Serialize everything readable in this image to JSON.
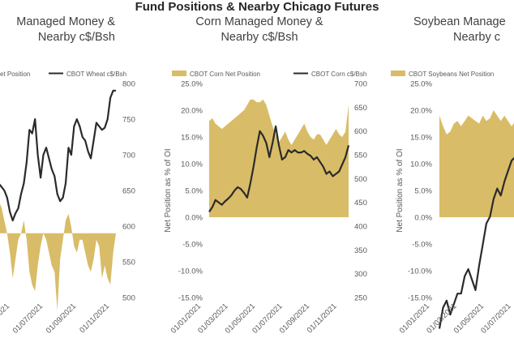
{
  "title": "Fund Positions & Nearby Chicago Futures",
  "colors": {
    "net_fill": "#D9BC67",
    "price_line": "#2B2B2B",
    "axis_text": "#595959"
  },
  "chart_data": [
    {
      "type": "area",
      "title_lines": [
        "Managed Money &",
        "Nearby c$/Bsh"
      ],
      "ylabel": "",
      "legend": [
        "et Position",
        "CBOT Wheat c$/Bsh"
      ],
      "legend_position": "top",
      "left_ticks": [],
      "right_ticks": [
        "800",
        "750",
        "700",
        "650",
        "600",
        "550",
        "500"
      ],
      "right_ylim": [
        500,
        800
      ],
      "x_tick_labels": [
        "01/05/2021",
        "01/07/2021",
        "01/09/2021",
        "01/11/2021"
      ],
      "net_position_pct": [
        6,
        5,
        4,
        2,
        0,
        -3,
        -7,
        -4,
        -1,
        0,
        2,
        -1,
        -6,
        -8,
        -9,
        -5,
        -2,
        0,
        -1,
        -3,
        -5,
        -6,
        -12,
        -4,
        -1,
        2,
        3,
        1,
        -2,
        -3,
        -1,
        -1,
        -3,
        -5,
        -6,
        -4,
        -1,
        -2,
        -7,
        -5,
        -7,
        -8,
        -3,
        0
      ],
      "price": [
        640,
        660,
        655,
        650,
        640,
        620,
        608,
        618,
        625,
        645,
        660,
        690,
        735,
        730,
        750,
        700,
        668,
        700,
        710,
        695,
        680,
        670,
        645,
        635,
        640,
        660,
        710,
        700,
        740,
        750,
        740,
        725,
        720,
        705,
        695,
        720,
        745,
        740,
        735,
        738,
        750,
        780,
        790,
        790
      ]
    },
    {
      "type": "area",
      "title_lines": [
        "Corn Managed Money &",
        "Nearby c$/Bsh"
      ],
      "ylabel": "Net Position as % of OI",
      "legend": [
        "CBOT Corn Net Position",
        "CBOT Corn c$/Bsh"
      ],
      "legend_position": "top",
      "left_ticks": [
        "25.0%",
        "20.0%",
        "15.0%",
        "10.0%",
        "5.0%",
        "0.0%",
        "-5.0%",
        "-10.0%",
        "-15.0%"
      ],
      "left_ylim": [
        -15,
        25
      ],
      "right_ticks": [
        "700",
        "650",
        "600",
        "550",
        "500",
        "450",
        "400",
        "350",
        "300",
        "250"
      ],
      "right_ylim": [
        250,
        700
      ],
      "x_tick_labels": [
        "01/01/2021",
        "01/03/2021",
        "01/05/2021",
        "01/07/2021",
        "01/09/2021",
        "01/11/2021"
      ],
      "net_position_pct": [
        18,
        18.5,
        17.5,
        17,
        16.5,
        17,
        17.5,
        18,
        18.5,
        19,
        19.5,
        20,
        21,
        22,
        22,
        21.5,
        21.5,
        22,
        21,
        19,
        17,
        15.5,
        14,
        15,
        16,
        14.5,
        13.5,
        14.5,
        15.5,
        16.5,
        17.5,
        16,
        15,
        14.5,
        15.5,
        15.5,
        14.5,
        13.5,
        14.5,
        15.5,
        16.5,
        15.5,
        15,
        16,
        21
      ],
      "price": [
        430,
        440,
        455,
        450,
        445,
        452,
        458,
        465,
        475,
        482,
        478,
        470,
        460,
        490,
        525,
        565,
        600,
        590,
        575,
        545,
        575,
        610,
        570,
        540,
        545,
        560,
        555,
        560,
        555,
        555,
        558,
        552,
        548,
        540,
        545,
        535,
        525,
        510,
        515,
        505,
        510,
        515,
        530,
        545,
        570
      ]
    },
    {
      "type": "area",
      "title_lines": [
        "Soybean Manage",
        "Nearby c"
      ],
      "ylabel": "Net Position as % of OI",
      "legend": [
        "CBOT Soybeans Net Position"
      ],
      "legend_position": "top",
      "left_ticks": [
        "25.0%",
        "20.0%",
        "15.0%",
        "10.0%",
        "5.0%",
        "0.0%",
        "-5.0%",
        "-10.0%",
        "-15.0%"
      ],
      "left_ylim": [
        -15,
        25
      ],
      "x_tick_labels": [
        "01/01/2021",
        "01/03/2021",
        "01/05/2021",
        "01/07/2021"
      ],
      "net_position_pct": [
        19,
        17,
        15.5,
        16,
        17.5,
        18,
        17,
        18,
        19,
        18.5,
        18,
        17.5,
        19,
        18,
        18.5,
        20,
        19,
        18,
        19,
        18,
        17,
        18,
        17
      ],
      "price_right_ylim": [
        950,
        1700
      ],
      "price": [
        1000,
        1060,
        1080,
        1040,
        1070,
        1100,
        1100,
        1150,
        1170,
        1140,
        1110,
        1180,
        1240,
        1300,
        1320,
        1370,
        1400,
        1380,
        1420,
        1450,
        1480,
        1490,
        1480
      ]
    }
  ]
}
